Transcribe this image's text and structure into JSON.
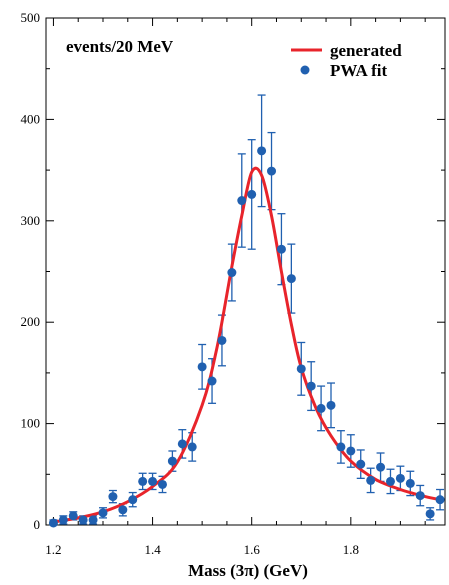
{
  "chart_data": {
    "type": "scatter",
    "annotation": "events/20 MeV",
    "xlabel": "Mass (3π)  (GeV)",
    "ylabel": "",
    "xlim": [
      1.185,
      1.99
    ],
    "ylim": [
      0,
      500
    ],
    "x_ticks": [
      1.2,
      1.4,
      1.6,
      1.8
    ],
    "x_tick_labels": [
      "1.2",
      "1.4",
      "1.6",
      "1.8"
    ],
    "y_ticks": [
      0,
      100,
      200,
      300,
      400,
      500
    ],
    "y_tick_labels": [
      "0",
      "100",
      "200",
      "300",
      "400",
      "500"
    ],
    "grid": false,
    "legend_position": "top-right",
    "series": [
      {
        "name": "generated",
        "kind": "line",
        "color": "#e8242b",
        "x": [
          1.2,
          1.25,
          1.3,
          1.35,
          1.4,
          1.45,
          1.5,
          1.53,
          1.56,
          1.58,
          1.6,
          1.62,
          1.64,
          1.66,
          1.68,
          1.7,
          1.73,
          1.76,
          1.8,
          1.85,
          1.9,
          1.95,
          1.98
        ],
        "y": [
          3,
          7,
          13,
          23,
          38,
          62,
          118,
          175,
          255,
          305,
          348,
          345,
          305,
          250,
          198,
          155,
          115,
          88,
          63,
          45,
          35,
          28,
          25
        ]
      },
      {
        "name": "PWA fit",
        "kind": "points_with_error_bars",
        "color": "#2060b0",
        "x": [
          1.2,
          1.22,
          1.24,
          1.26,
          1.28,
          1.3,
          1.32,
          1.34,
          1.36,
          1.38,
          1.4,
          1.42,
          1.44,
          1.46,
          1.48,
          1.5,
          1.52,
          1.54,
          1.56,
          1.58,
          1.6,
          1.62,
          1.64,
          1.66,
          1.68,
          1.7,
          1.72,
          1.74,
          1.76,
          1.78,
          1.8,
          1.82,
          1.84,
          1.86,
          1.88,
          1.9,
          1.92,
          1.94,
          1.96,
          1.98
        ],
        "y": [
          2,
          5,
          9,
          5,
          5,
          12,
          28,
          15,
          25,
          43,
          43,
          40,
          63,
          80,
          77,
          156,
          142,
          182,
          249,
          320,
          326,
          369,
          349,
          272,
          243,
          154,
          137,
          115,
          118,
          77,
          73,
          60,
          44,
          57,
          43,
          46,
          41,
          29,
          11,
          25
        ],
        "error": [
          3,
          4,
          4,
          4,
          4,
          5,
          6,
          6,
          7,
          8,
          8,
          8,
          10,
          14,
          14,
          22,
          22,
          25,
          28,
          46,
          54,
          55,
          38,
          35,
          34,
          26,
          24,
          22,
          22,
          16,
          16,
          14,
          12,
          14,
          12,
          12,
          12,
          10,
          6,
          10
        ]
      }
    ]
  }
}
